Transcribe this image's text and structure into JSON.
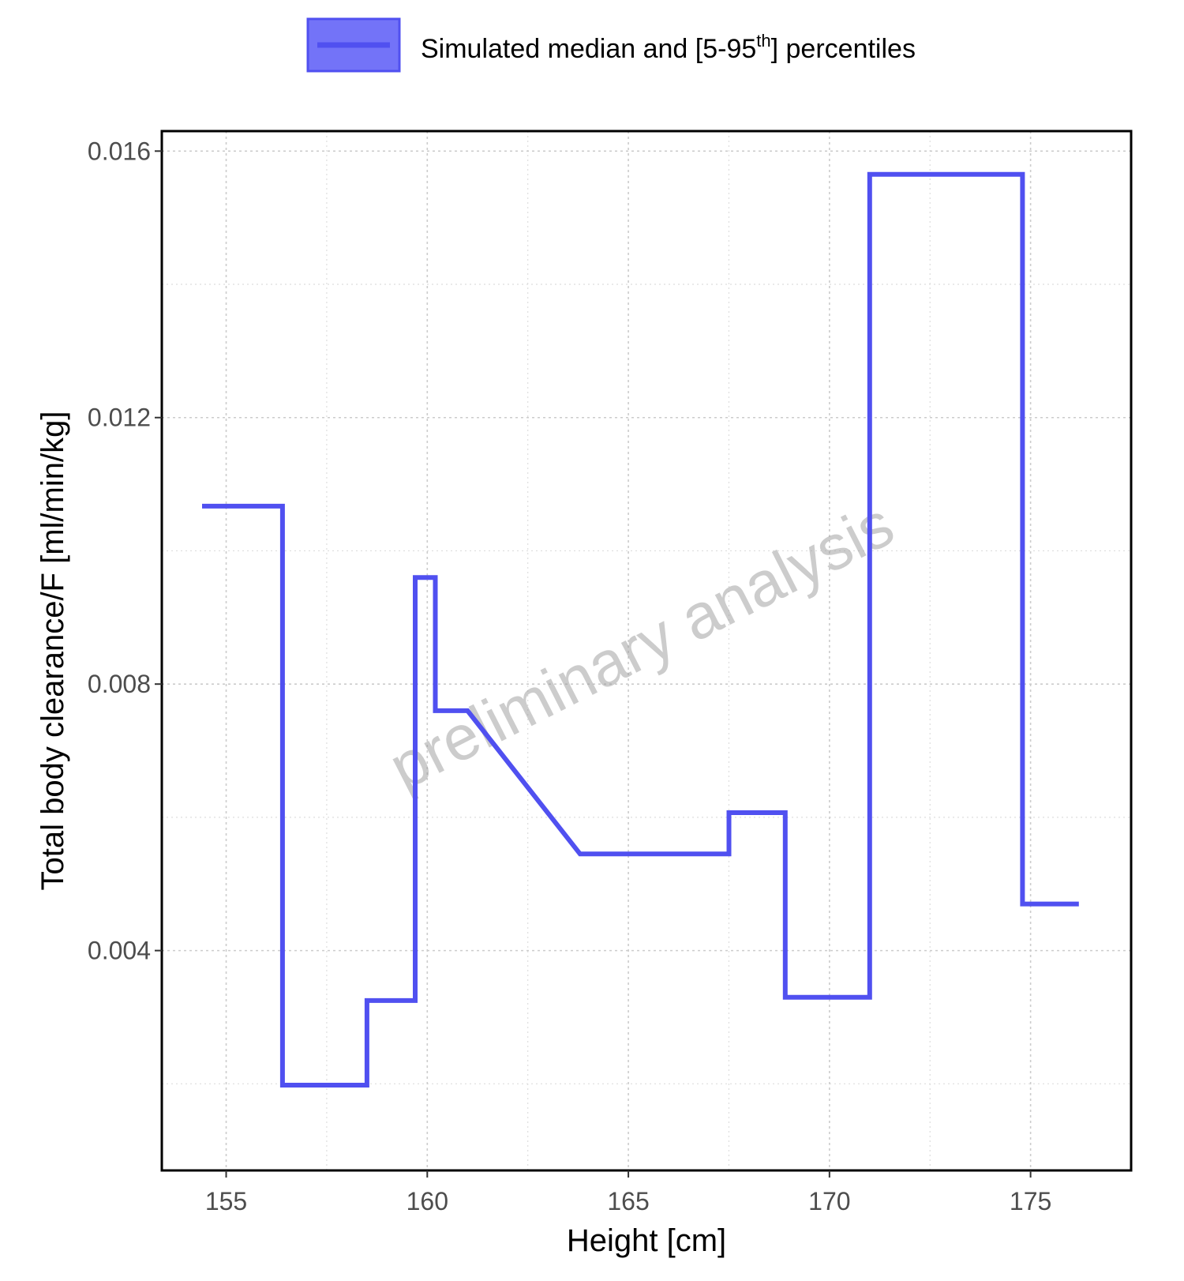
{
  "chart_data": {
    "type": "line",
    "step": true,
    "xlabel": "Height [cm]",
    "ylabel": "Total body clearance/F [ml/min/kg]",
    "xlim": [
      153.4,
      177.5
    ],
    "ylim": [
      0.0007,
      0.0163
    ],
    "x_ticks": [
      155,
      160,
      165,
      170,
      175
    ],
    "x_tick_labels": [
      "155",
      "160",
      "165",
      "170",
      "175"
    ],
    "y_ticks": [
      0.004,
      0.008,
      0.012,
      0.016
    ],
    "y_tick_labels": [
      "0.004",
      "0.008",
      "0.012",
      "0.016"
    ],
    "grid": true,
    "legend": {
      "position": "top",
      "text_main": "Simulated median and [5-95",
      "text_sup": "th",
      "text_end": "] percentiles"
    },
    "watermark": "preliminary analysis",
    "colors": {
      "series": "#5050f0",
      "legend_fill": "#7373f8",
      "grid": "#cccccc",
      "watermark": "#9a9a9a"
    },
    "series": [
      {
        "points": [
          [
            154.4,
            0.01067
          ],
          [
            156.4,
            0.01067
          ],
          [
            156.4,
            0.00198
          ],
          [
            158.5,
            0.00198
          ],
          [
            158.5,
            0.00325
          ],
          [
            159.7,
            0.00325
          ],
          [
            159.7,
            0.0096
          ],
          [
            160.2,
            0.0096
          ],
          [
            160.2,
            0.0076
          ],
          [
            161.0,
            0.0076
          ],
          [
            163.8,
            0.00545
          ],
          [
            167.5,
            0.00545
          ],
          [
            167.5,
            0.00607
          ],
          [
            168.9,
            0.00607
          ],
          [
            168.9,
            0.0033
          ],
          [
            171.0,
            0.0033
          ],
          [
            171.0,
            0.01565
          ],
          [
            174.8,
            0.01565
          ],
          [
            174.8,
            0.0047
          ],
          [
            176.2,
            0.0047
          ]
        ]
      }
    ]
  }
}
